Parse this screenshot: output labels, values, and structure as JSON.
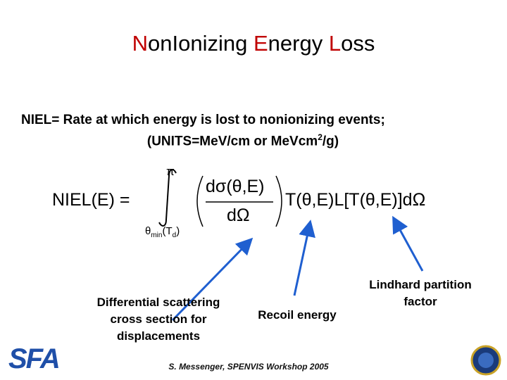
{
  "title": {
    "parts": [
      "N",
      "onIonizing ",
      "E",
      "nergy ",
      "L",
      "oss"
    ]
  },
  "definition": {
    "term": "NIEL=",
    "text": "Rate at which energy is lost to nonionizing events;",
    "units_before": "(UNITS=MeV/cm or MeVcm",
    "units_sup": "2",
    "units_after": "/g)"
  },
  "formula": {
    "lhs": "NIEL(E) =",
    "upper": "π",
    "lower_theta": "θ",
    "lower_sub": "min",
    "lower_paren": "(T",
    "lower_sub2": "d",
    "lower_close": ")",
    "numerator": "dσ(θ,E)",
    "denominator": "dΩ",
    "rest": "T(θ,E)L[T(θ,E)]dΩ"
  },
  "labels": {
    "differential": [
      "Differential scattering",
      "cross section for",
      "displacements"
    ],
    "recoil": "Recoil energy",
    "lindhard": [
      "Lindhard partition",
      "factor"
    ]
  },
  "footer": "S. Messenger, SPENVIS Workshop 2005",
  "logo": "SFA"
}
